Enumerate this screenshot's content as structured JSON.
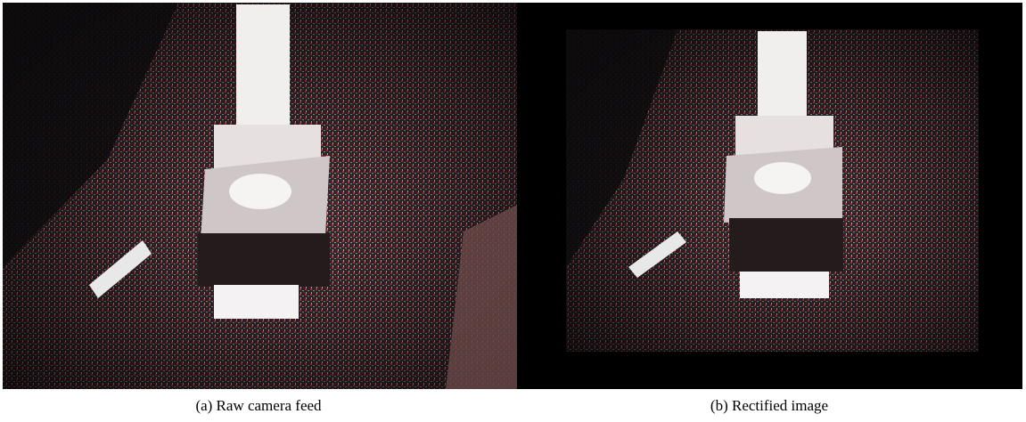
{
  "figure": {
    "panels": [
      {
        "caption": "(a) Raw camera feed"
      },
      {
        "caption": "(b) Rectified image"
      }
    ]
  }
}
